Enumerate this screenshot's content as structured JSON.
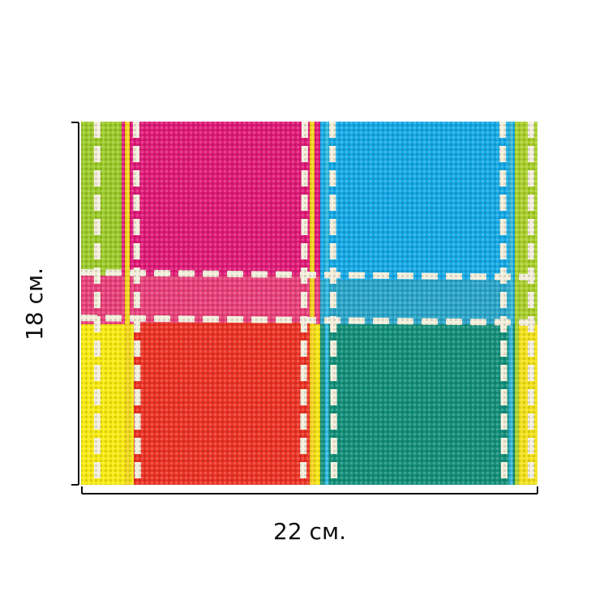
{
  "labels": {
    "height": "18 см.",
    "width": "22 см."
  }
}
